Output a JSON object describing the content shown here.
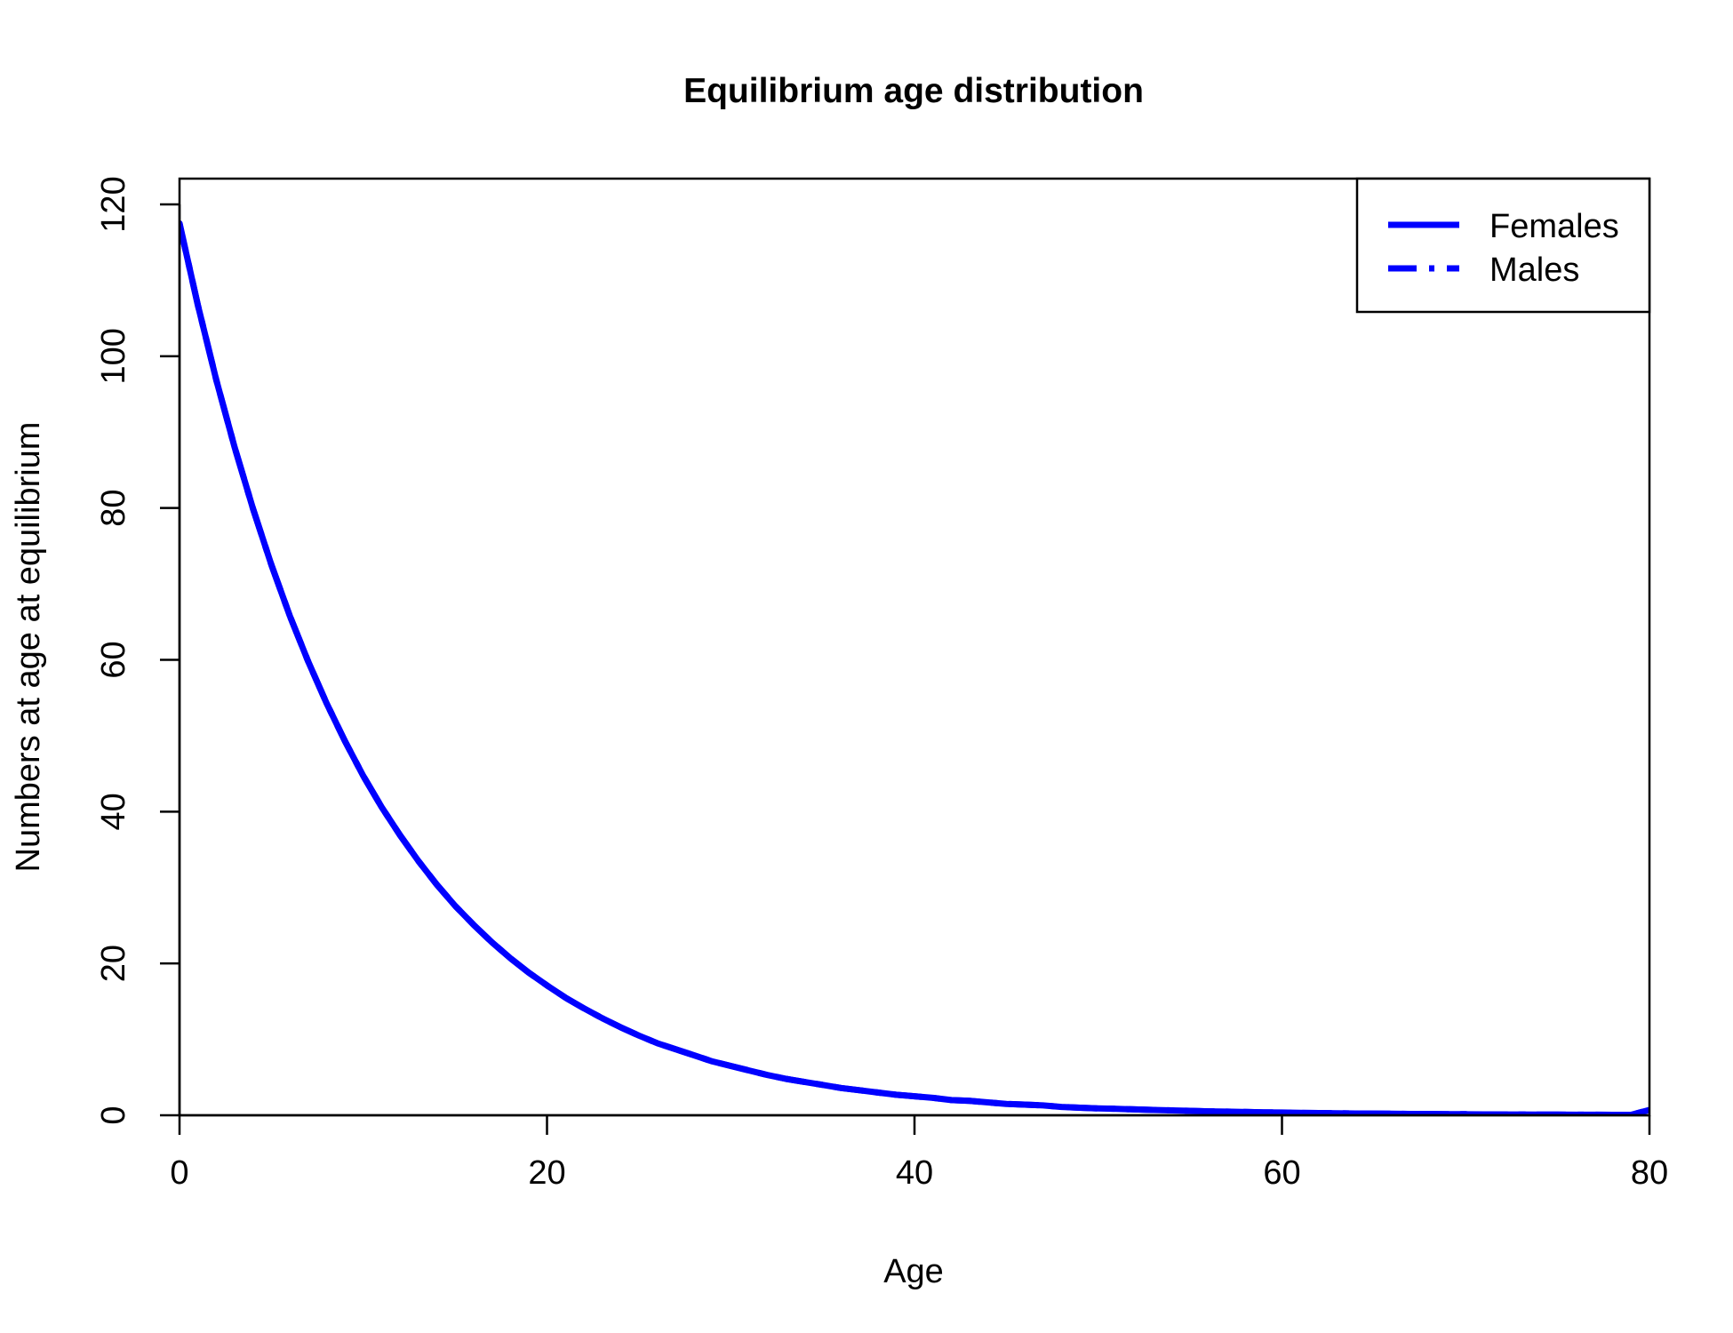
{
  "chart_data": {
    "type": "line",
    "title": "Equilibrium age distribution",
    "xlabel": "Age",
    "ylabel": "Numbers at age at equilibrium",
    "xlim": [
      0,
      80
    ],
    "ylim": [
      0,
      120
    ],
    "xticks": [
      0,
      20,
      40,
      60,
      80
    ],
    "yticks": [
      0,
      20,
      40,
      60,
      80,
      100,
      120
    ],
    "grid": false,
    "legend_position": "top-right",
    "series": [
      {
        "name": "Females",
        "color": "#0000ff",
        "line_style": "solid",
        "x": [
          0,
          1,
          2,
          3,
          4,
          5,
          6,
          7,
          8,
          9,
          10,
          11,
          12,
          13,
          14,
          15,
          16,
          17,
          18,
          19,
          20,
          21,
          22,
          23,
          24,
          25,
          26,
          27,
          28,
          29,
          30,
          31,
          32,
          33,
          34,
          35,
          36,
          37,
          38,
          39,
          40,
          41,
          42,
          43,
          44,
          45,
          46,
          47,
          48,
          49,
          50,
          51,
          52,
          53,
          54,
          55,
          56,
          57,
          58,
          59,
          60,
          61,
          62,
          63,
          64,
          65,
          66,
          67,
          68,
          69,
          70,
          71,
          72,
          73,
          74,
          75,
          76,
          77,
          78,
          79,
          80
        ],
        "y": [
          117.5,
          106.7,
          96.9,
          88.0,
          79.9,
          72.5,
          65.8,
          59.8,
          54.3,
          49.3,
          44.7,
          40.6,
          36.9,
          33.5,
          30.4,
          27.6,
          25.1,
          22.8,
          20.7,
          18.8,
          17.1,
          15.5,
          14.1,
          12.8,
          11.6,
          10.5,
          9.5,
          8.7,
          7.9,
          7.1,
          6.5,
          5.9,
          5.3,
          4.8,
          4.4,
          4.0,
          3.6,
          3.3,
          3.0,
          2.7,
          2.5,
          2.3,
          2.0,
          1.9,
          1.7,
          1.5,
          1.4,
          1.3,
          1.1,
          1.0,
          0.9,
          0.85,
          0.77,
          0.7,
          0.64,
          0.58,
          0.52,
          0.48,
          0.43,
          0.39,
          0.36,
          0.32,
          0.29,
          0.27,
          0.24,
          0.22,
          0.2,
          0.18,
          0.16,
          0.15,
          0.14,
          0.12,
          0.11,
          0.1,
          0.09,
          0.08,
          0.07,
          0.07,
          0.06,
          0.06,
          0.7
        ]
      },
      {
        "name": "Males",
        "color": "#0000ff",
        "line_style": "dashdot",
        "x": [
          0,
          1,
          2,
          3,
          4,
          5,
          6,
          7,
          8,
          9,
          10,
          11,
          12,
          13,
          14,
          15,
          16,
          17,
          18,
          19,
          20,
          21,
          22,
          23,
          24,
          25,
          26,
          27,
          28,
          29,
          30,
          31,
          32,
          33,
          34,
          35,
          36,
          37,
          38,
          39,
          40,
          41,
          42,
          43,
          44,
          45,
          46,
          47,
          48,
          49,
          50,
          51,
          52,
          53,
          54,
          55,
          56,
          57,
          58,
          59,
          60,
          61,
          62,
          63,
          64,
          65,
          66,
          67,
          68,
          69,
          70,
          71,
          72,
          73,
          74,
          75,
          76,
          77,
          78,
          79,
          80
        ],
        "y": [
          117.5,
          106.7,
          96.9,
          88.0,
          79.9,
          72.5,
          65.8,
          59.8,
          54.3,
          49.3,
          44.7,
          40.6,
          36.9,
          33.5,
          30.4,
          27.6,
          25.1,
          22.8,
          20.7,
          18.8,
          17.1,
          15.5,
          14.1,
          12.8,
          11.6,
          10.5,
          9.5,
          8.7,
          7.9,
          7.1,
          6.5,
          5.9,
          5.3,
          4.8,
          4.4,
          4.0,
          3.6,
          3.3,
          3.0,
          2.7,
          2.5,
          2.3,
          2.0,
          1.9,
          1.7,
          1.5,
          1.4,
          1.3,
          1.1,
          1.0,
          0.9,
          0.85,
          0.77,
          0.7,
          0.64,
          0.58,
          0.52,
          0.48,
          0.43,
          0.39,
          0.36,
          0.32,
          0.29,
          0.27,
          0.24,
          0.22,
          0.2,
          0.18,
          0.16,
          0.15,
          0.14,
          0.12,
          0.11,
          0.1,
          0.09,
          0.08,
          0.07,
          0.07,
          0.06,
          0.06,
          0.7
        ]
      }
    ]
  }
}
